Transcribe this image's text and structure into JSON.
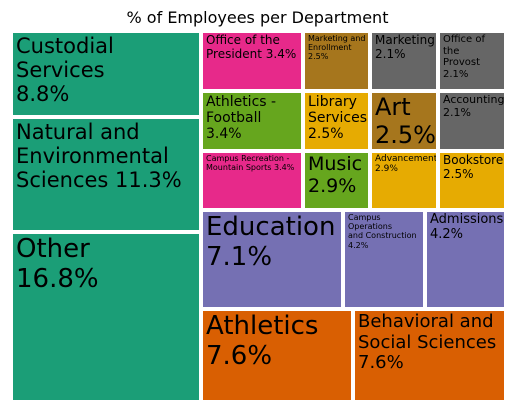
{
  "chart_data": {
    "type": "treemap",
    "title": "% of Employees per Department",
    "items": [
      {
        "label": "Custodial\nServices\n8.8%",
        "name": "Custodial Services",
        "value": 8.8,
        "color": "#1b9e77"
      },
      {
        "label": "Natural and\nEnvironmental\nSciences 11.3%",
        "name": "Natural and Environmental Sciences",
        "value": 11.3,
        "color": "#1b9e77"
      },
      {
        "label": "Other\n16.8%",
        "name": "Other",
        "value": 16.8,
        "color": "#1b9e77"
      },
      {
        "label": "Office of the\nPresident 3.4%",
        "name": "Office of the President",
        "value": 3.4,
        "color": "#e7298a"
      },
      {
        "label": "Marketing and\nEnrollment\n2.5%",
        "name": "Marketing and Enrollment",
        "value": 2.5,
        "color": "#a6761d"
      },
      {
        "label": "Marketing\n2.1%",
        "name": "Marketing",
        "value": 2.1,
        "color": "#666666"
      },
      {
        "label": "Office of the\nProvost 2.1%",
        "name": "Office of the Provost",
        "value": 2.1,
        "color": "#666666"
      },
      {
        "label": "Athletics -\nFootball\n3.4%",
        "name": "Athletics - Football",
        "value": 3.4,
        "color": "#66a61e"
      },
      {
        "label": "Library\nServices\n2.5%",
        "name": "Library Services",
        "value": 2.5,
        "color": "#e6ab02"
      },
      {
        "label": "Art\n2.5%",
        "name": "Art",
        "value": 2.5,
        "color": "#a6761d"
      },
      {
        "label": "Accounting\n2.1%",
        "name": "Accounting",
        "value": 2.1,
        "color": "#666666"
      },
      {
        "label": "Campus Recreation -\nMountain Sports 3.4%",
        "name": "Campus Recreation - Mountain Sports",
        "value": 3.4,
        "color": "#e7298a"
      },
      {
        "label": "Music\n2.9%",
        "name": "Music",
        "value": 2.9,
        "color": "#66a61e"
      },
      {
        "label": "Advancement\n2.9%",
        "name": "Advancement",
        "value": 2.9,
        "color": "#e6ab02"
      },
      {
        "label": "Bookstore\n2.5%",
        "name": "Bookstore",
        "value": 2.5,
        "color": "#e6ab02"
      },
      {
        "label": "Education\n7.1%",
        "name": "Education",
        "value": 7.1,
        "color": "#7570b3"
      },
      {
        "label": "Campus Operations\nand Construction\n4.2%",
        "name": "Campus Operations and Construction",
        "value": 4.2,
        "color": "#7570b3"
      },
      {
        "label": "Admissions\n4.2%",
        "name": "Admissions",
        "value": 4.2,
        "color": "#7570b3"
      },
      {
        "label": "Athletics\n7.6%",
        "name": "Athletics",
        "value": 7.6,
        "color": "#d95f02"
      },
      {
        "label": "Behavioral and\nSocial Sciences\n7.6%",
        "name": "Behavioral and Social Sciences",
        "value": 7.6,
        "color": "#d95f02"
      }
    ]
  }
}
